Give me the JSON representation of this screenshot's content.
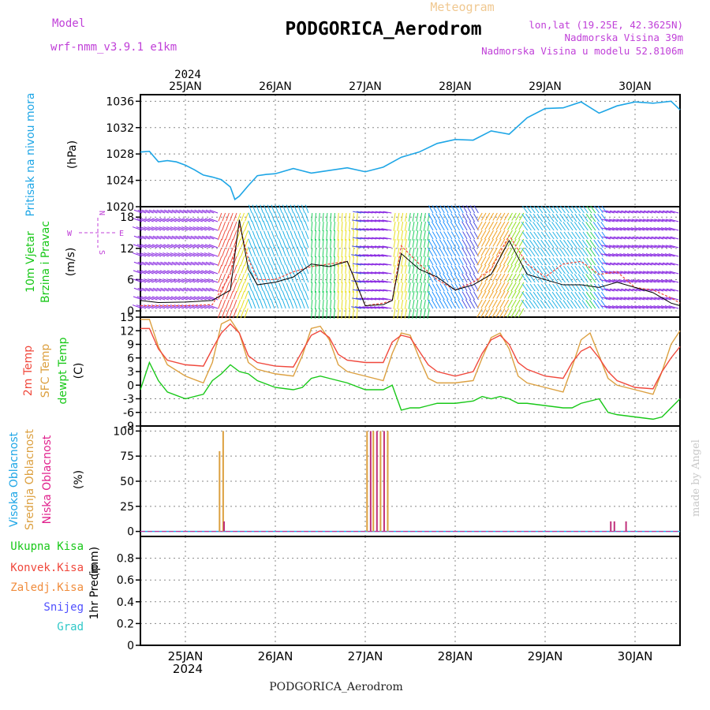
{
  "header": {
    "meteogram": "Meteogram",
    "model_label": "Model",
    "model_name": "wrf-nmm_v3.9.1 e1km",
    "station": "PODGORICA_Aerodrom",
    "lonlat": "lon,lat (19.25E, 42.3625N)",
    "elevation": "Nadmorska Visina 39m",
    "model_elevation": "Nadmorska Visina u modelu 52.8106m",
    "footer_station": "PODGORICA_Aerodrom",
    "watermark": "made by Angel"
  },
  "colors": {
    "pressure": "#1ea6e6",
    "temp2m": "#f0483c",
    "sfc": "#dca040",
    "dewpt": "#18c818",
    "purple_text": "#c040d8",
    "orange_text": "#f0c890"
  },
  "chart_data": [
    {
      "type": "line",
      "name": "pressure",
      "ylabel": "Pritisak na nivou mora",
      "unit": "(hPa)",
      "ylim": [
        1020,
        1037
      ],
      "yticks": [
        1020,
        1024,
        1028,
        1032,
        1036
      ],
      "x_days": [
        "24.5",
        "24.6",
        "24.7",
        "24.8",
        "24.9",
        "25.0",
        "25.1",
        "25.2",
        "25.3",
        "25.4",
        "25.5",
        "25.55",
        "25.6",
        "25.7",
        "25.8",
        "25.9",
        "26.0",
        "26.2",
        "26.4",
        "26.6",
        "26.8",
        "27.0",
        "27.2",
        "27.4",
        "27.6",
        "27.8",
        "28.0",
        "28.2",
        "28.4",
        "28.6",
        "28.8",
        "29.0",
        "29.2",
        "29.4",
        "29.6",
        "29.8",
        "30.0",
        "30.2",
        "30.4",
        "30.5"
      ],
      "values": [
        1028.3,
        1028.4,
        1026.8,
        1027.0,
        1026.8,
        1026.3,
        1025.6,
        1024.8,
        1024.5,
        1024.1,
        1023.0,
        1021.1,
        1021.6,
        1023.2,
        1024.7,
        1024.9,
        1025.0,
        1025.8,
        1025.1,
        1025.5,
        1025.9,
        1025.3,
        1026.0,
        1027.5,
        1028.3,
        1029.6,
        1030.2,
        1030.1,
        1031.5,
        1031.0,
        1033.5,
        1034.9,
        1035.0,
        1035.9,
        1034.2,
        1035.3,
        1035.9,
        1035.7,
        1036.0,
        1034.7
      ]
    },
    {
      "type": "line",
      "name": "wind",
      "ylabel": "10m Vjetar",
      "ylabel2": "Brzina i Pravac",
      "unit": "(m/s)",
      "compass_n": "N",
      "compass_s": "S",
      "compass_e": "E",
      "compass_w": "W",
      "ylim": [
        -1.2,
        20
      ],
      "yticks": [
        0,
        6,
        12,
        18
      ],
      "x_days": [
        "24.5",
        "24.7",
        "25.0",
        "25.3",
        "25.5",
        "25.6",
        "25.7",
        "25.8",
        "26.0",
        "26.2",
        "26.4",
        "26.6",
        "26.8",
        "27.0",
        "27.2",
        "27.3",
        "27.4",
        "27.6",
        "27.8",
        "28.0",
        "28.2",
        "28.4",
        "28.6",
        "28.8",
        "29.0",
        "29.2",
        "29.4",
        "29.6",
        "29.8",
        "30.0",
        "30.2",
        "30.4",
        "30.5"
      ],
      "speed": [
        2.0,
        1.6,
        1.7,
        2.0,
        4.0,
        17.5,
        8.0,
        5.0,
        5.5,
        6.5,
        9.0,
        8.5,
        9.5,
        1.0,
        1.2,
        2.0,
        11.0,
        8.0,
        6.5,
        4.0,
        5.0,
        7.0,
        13.5,
        7.0,
        6.0,
        5.0,
        5.0,
        4.5,
        5.5,
        4.5,
        3.5,
        1.5,
        1.0
      ],
      "gust": [
        1.0,
        1.0,
        1.0,
        1.2,
        7.0,
        16.5,
        10.0,
        6.0,
        6.0,
        7.5,
        8.5,
        9.0,
        9.5,
        1.0,
        1.5,
        2.0,
        12.5,
        9.0,
        6.0,
        4.0,
        5.5,
        8.0,
        14.5,
        9.0,
        6.5,
        9.0,
        9.5,
        7.0,
        7.5,
        4.5,
        4.0,
        2.5,
        1.5
      ]
    },
    {
      "type": "line",
      "name": "temperature",
      "ylabel": "2m Temp",
      "ylabel2": "SFC Temp",
      "ylabel3": "dewpt Temp",
      "unit": "(C)",
      "ylim": [
        -9,
        15
      ],
      "yticks": [
        15,
        12,
        9,
        6,
        3,
        0,
        -3,
        -6,
        -9
      ],
      "x_days": [
        "24.5",
        "24.6",
        "24.7",
        "24.8",
        "25.0",
        "25.2",
        "25.3",
        "25.4",
        "25.5",
        "25.6",
        "25.7",
        "25.8",
        "26.0",
        "26.2",
        "26.3",
        "26.4",
        "26.5",
        "26.6",
        "26.7",
        "26.8",
        "27.0",
        "27.2",
        "27.3",
        "27.4",
        "27.5",
        "27.6",
        "27.7",
        "27.8",
        "28.0",
        "28.2",
        "28.3",
        "28.4",
        "28.5",
        "28.6",
        "28.7",
        "28.8",
        "29.0",
        "29.2",
        "29.3",
        "29.4",
        "29.5",
        "29.6",
        "29.7",
        "29.8",
        "30.0",
        "30.2",
        "30.3",
        "30.4",
        "30.5"
      ],
      "temp2m": [
        12.5,
        12.5,
        8.0,
        5.5,
        4.5,
        4.2,
        8.0,
        11.5,
        13.5,
        11.5,
        6.5,
        5.0,
        4.2,
        4.0,
        7.5,
        11.0,
        12.0,
        10.5,
        6.8,
        5.5,
        5.0,
        5.0,
        9.5,
        11.0,
        10.5,
        7.5,
        4.5,
        3.0,
        2.0,
        3.0,
        7.0,
        10.0,
        11.0,
        9.0,
        5.0,
        3.5,
        2.0,
        1.5,
        5.0,
        7.5,
        8.5,
        6.0,
        3.0,
        1.0,
        -0.5,
        -0.8,
        3.0,
        6.0,
        8.5
      ],
      "sfc": [
        14.5,
        14.5,
        8.5,
        4.5,
        2.0,
        0.5,
        5.0,
        13.5,
        14.5,
        11.5,
        5.0,
        3.5,
        2.5,
        2.0,
        6.5,
        12.5,
        13.0,
        10.0,
        4.5,
        3.0,
        2.0,
        1.0,
        7.0,
        11.5,
        11.0,
        6.0,
        1.5,
        0.5,
        0.5,
        1.0,
        6.0,
        10.5,
        11.5,
        8.0,
        2.0,
        0.5,
        -0.5,
        -1.5,
        4.0,
        10.0,
        11.5,
        6.5,
        1.5,
        0.0,
        -1.0,
        -2.0,
        3.0,
        9.0,
        12.0
      ],
      "dewpt": [
        -1.0,
        5.0,
        1.0,
        -1.5,
        -3.0,
        -2.0,
        1.0,
        2.5,
        4.5,
        3.0,
        2.5,
        1.0,
        -0.5,
        -1.0,
        -0.5,
        1.5,
        2.0,
        1.5,
        1.0,
        0.5,
        -1.0,
        -1.0,
        0.0,
        -5.5,
        -5.0,
        -5.0,
        -4.5,
        -4.0,
        -4.0,
        -3.5,
        -2.5,
        -3.0,
        -2.5,
        -3.0,
        -4.0,
        -4.0,
        -4.5,
        -5.0,
        -5.0,
        -4.0,
        -3.5,
        -3.0,
        -6.0,
        -6.5,
        -7.0,
        -7.5,
        -7.0,
        -5.0,
        -3.0
      ]
    },
    {
      "type": "bar",
      "name": "clouds",
      "ylabel": "Visoka Oblacnost",
      "ylabel2": "Srednja Oblacnost",
      "ylabel3": "Niska Oblacnost",
      "unit": "(%)",
      "ylim": [
        -5,
        105
      ],
      "yticks": [
        0,
        25,
        50,
        75,
        100
      ],
      "bars": [
        {
          "x": "25.38",
          "layer": "middle",
          "value": 80
        },
        {
          "x": "25.42",
          "layer": "middle",
          "value": 100
        },
        {
          "x": "25.43",
          "layer": "low",
          "value": 10
        },
        {
          "x": "27.02",
          "layer": "middle",
          "value": 100
        },
        {
          "x": "27.06",
          "layer": "low",
          "value": 100
        },
        {
          "x": "27.09",
          "layer": "middle",
          "value": 100
        },
        {
          "x": "27.13",
          "layer": "low",
          "value": 100
        },
        {
          "x": "27.17",
          "layer": "middle",
          "value": 100
        },
        {
          "x": "27.21",
          "layer": "low",
          "value": 100
        },
        {
          "x": "27.25",
          "layer": "middle",
          "value": 100
        },
        {
          "x": "29.73",
          "layer": "low",
          "value": 10
        },
        {
          "x": "29.77",
          "layer": "low",
          "value": 10
        },
        {
          "x": "29.9",
          "layer": "low",
          "value": 10
        }
      ]
    },
    {
      "type": "bar",
      "name": "precip",
      "ylabel": "1hr Precip",
      "unit": "(mm)",
      "ylim": [
        0,
        1.0
      ],
      "yticks": [
        0,
        0.2,
        0.4,
        0.6,
        0.8
      ],
      "ytick_labels": [
        "0",
        "0.2",
        "0.4",
        "0.6",
        "0.8"
      ],
      "legend": [
        {
          "label": "Ukupna  Kisa",
          "color": "#18c818"
        },
        {
          "label": "Konvek.Kisa",
          "color": "#f0483c"
        },
        {
          "label": "Zaledj.Kisa",
          "color": "#f08c3c"
        },
        {
          "label": "Snijeg",
          "color": "#5050ff"
        },
        {
          "label": "Grad",
          "color": "#30c8c8"
        }
      ],
      "values": []
    }
  ],
  "x_axis": {
    "year": "2024",
    "days": [
      {
        "label": "25JAN",
        "day": 25
      },
      {
        "label": "26JAN",
        "day": 26
      },
      {
        "label": "27JAN",
        "day": 27
      },
      {
        "label": "28JAN",
        "day": 28
      },
      {
        "label": "29JAN",
        "day": 29
      },
      {
        "label": "30JAN",
        "day": 30
      }
    ],
    "range": [
      24.5,
      30.5
    ]
  }
}
